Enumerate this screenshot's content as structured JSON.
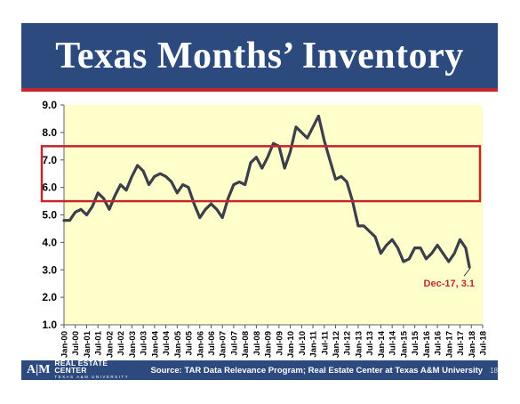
{
  "header": {
    "title": "Texas Months’ Inventory"
  },
  "footer": {
    "logo_mark": "A|M",
    "logo_name": "REAL ESTATE CENTER",
    "logo_sub": "TEXAS A&M UNIVERSITY",
    "source": "Source:  TAR Data Relevance Program; Real Estate Center at Texas A&M University",
    "page_number": "18"
  },
  "colors": {
    "header": "#2c4a7e",
    "accent": "#c0282e",
    "plot_bg": "#ffffcc",
    "line": "#3a3f4a"
  },
  "chart_data": {
    "type": "line",
    "title": "",
    "xlabel": "",
    "ylabel": "",
    "ylim": [
      1.0,
      9.0
    ],
    "yticks": [
      "1.0",
      "2.0",
      "3.0",
      "4.0",
      "5.0",
      "6.0",
      "7.0",
      "8.0",
      "9.0"
    ],
    "xticks": [
      "Jan-00",
      "Jul-00",
      "Jan-01",
      "Jul-01",
      "Jan-02",
      "Jul-02",
      "Jan-03",
      "Jul-03",
      "Jan-04",
      "Jul-04",
      "Jan-05",
      "Jul-05",
      "Jan-06",
      "Jul-06",
      "Jan-07",
      "Jul-07",
      "Jan-08",
      "Jul-08",
      "Jan-09",
      "Jul-09",
      "Jan-10",
      "Jul-10",
      "Jan-11",
      "Jul-11",
      "Jan-12",
      "Jul-12",
      "Jan-13",
      "Jul-13",
      "Jan-14",
      "Jul-14",
      "Jan-15",
      "Jul-15",
      "Jan-16",
      "Jul-16",
      "Jan-17",
      "Jul-17",
      "Jan-18",
      "Jul-18"
    ],
    "highlight_band": {
      "from": 5.5,
      "to": 7.5
    },
    "annotation": {
      "text": "Dec-17, 3.1",
      "x": "Dec-17",
      "y": 3.1
    },
    "series": [
      {
        "points": [
          [
            "Jan-00",
            4.8
          ],
          [
            "Apr-00",
            4.8
          ],
          [
            "Jul-00",
            5.1
          ],
          [
            "Oct-00",
            5.2
          ],
          [
            "Jan-01",
            5.0
          ],
          [
            "Apr-01",
            5.3
          ],
          [
            "Jul-01",
            5.8
          ],
          [
            "Oct-01",
            5.6
          ],
          [
            "Jan-02",
            5.2
          ],
          [
            "Apr-02",
            5.7
          ],
          [
            "Jul-02",
            6.1
          ],
          [
            "Oct-02",
            5.9
          ],
          [
            "Jan-03",
            6.4
          ],
          [
            "Apr-03",
            6.8
          ],
          [
            "Jul-03",
            6.6
          ],
          [
            "Oct-03",
            6.1
          ],
          [
            "Jan-04",
            6.4
          ],
          [
            "Apr-04",
            6.5
          ],
          [
            "Jul-04",
            6.4
          ],
          [
            "Oct-04",
            6.2
          ],
          [
            "Jan-05",
            5.8
          ],
          [
            "Apr-05",
            6.1
          ],
          [
            "Jul-05",
            6.0
          ],
          [
            "Oct-05",
            5.4
          ],
          [
            "Jan-06",
            4.9
          ],
          [
            "Apr-06",
            5.2
          ],
          [
            "Jul-06",
            5.4
          ],
          [
            "Oct-06",
            5.2
          ],
          [
            "Jan-07",
            4.9
          ],
          [
            "Apr-07",
            5.6
          ],
          [
            "Jul-07",
            6.1
          ],
          [
            "Oct-07",
            6.2
          ],
          [
            "Jan-08",
            6.1
          ],
          [
            "Apr-08",
            6.9
          ],
          [
            "Jul-08",
            7.1
          ],
          [
            "Oct-08",
            6.7
          ],
          [
            "Jan-09",
            7.1
          ],
          [
            "Apr-09",
            7.6
          ],
          [
            "Jul-09",
            7.5
          ],
          [
            "Oct-09",
            6.7
          ],
          [
            "Jan-10",
            7.3
          ],
          [
            "Apr-10",
            8.2
          ],
          [
            "Jul-10",
            8.0
          ],
          [
            "Oct-10",
            7.8
          ],
          [
            "Jan-11",
            8.2
          ],
          [
            "Apr-11",
            8.6
          ],
          [
            "Jul-11",
            7.7
          ],
          [
            "Oct-11",
            7.0
          ],
          [
            "Jan-12",
            6.3
          ],
          [
            "Apr-12",
            6.4
          ],
          [
            "Jul-12",
            6.2
          ],
          [
            "Oct-12",
            5.5
          ],
          [
            "Jan-13",
            4.6
          ],
          [
            "Apr-13",
            4.6
          ],
          [
            "Jul-13",
            4.4
          ],
          [
            "Oct-13",
            4.2
          ],
          [
            "Jan-14",
            3.6
          ],
          [
            "Apr-14",
            3.9
          ],
          [
            "Jul-14",
            4.1
          ],
          [
            "Oct-14",
            3.8
          ],
          [
            "Jan-15",
            3.3
          ],
          [
            "Apr-15",
            3.4
          ],
          [
            "Jul-15",
            3.8
          ],
          [
            "Oct-15",
            3.8
          ],
          [
            "Jan-16",
            3.4
          ],
          [
            "Apr-16",
            3.6
          ],
          [
            "Jul-16",
            3.9
          ],
          [
            "Oct-16",
            3.6
          ],
          [
            "Jan-17",
            3.3
          ],
          [
            "Apr-17",
            3.6
          ],
          [
            "Jul-17",
            4.1
          ],
          [
            "Oct-17",
            3.8
          ],
          [
            "Dec-17",
            3.1
          ]
        ]
      }
    ]
  }
}
